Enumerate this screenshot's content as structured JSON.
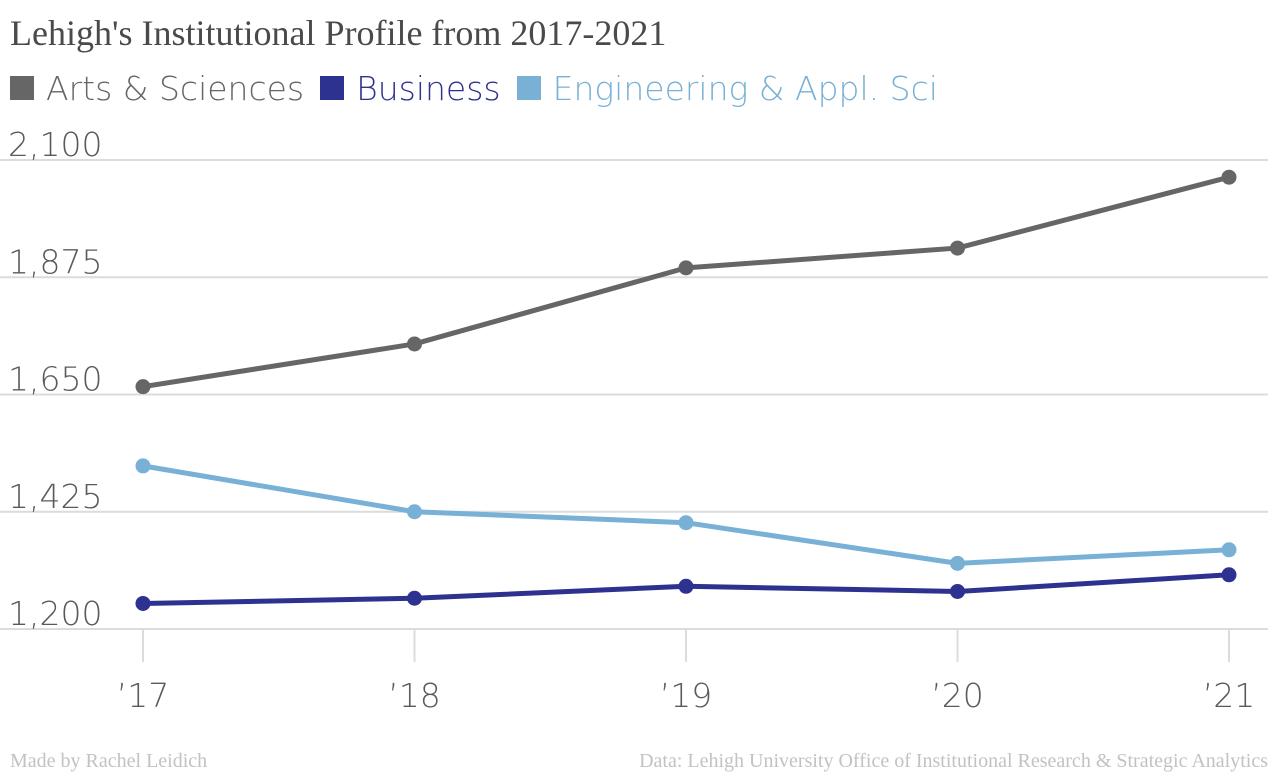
{
  "chart_data": {
    "type": "line",
    "title": "Lehigh's Institutional Profile from 2017-2021",
    "x": [
      "’17",
      "’18",
      "’19",
      "’20",
      "’21"
    ],
    "y_ticks": [
      "1,200",
      "1,425",
      "1,650",
      "1,875",
      "2,100"
    ],
    "ylim": [
      1200,
      2100
    ],
    "grid": true,
    "legend_position": "top-left",
    "series": [
      {
        "name": "Arts & Sciences",
        "color": "#666666",
        "values": [
          1665,
          1747,
          1893,
          1931,
          2067
        ]
      },
      {
        "name": "Business",
        "color": "#2d3190",
        "values": [
          1249,
          1259,
          1282,
          1272,
          1304
        ]
      },
      {
        "name": "Engineering & Appl. Sci",
        "color": "#78b0d6",
        "values": [
          1513,
          1425,
          1404,
          1326,
          1352
        ]
      }
    ]
  },
  "footer": {
    "credit": "Made by Rachel Leidich",
    "source": "Data: Lehigh University Office of Institutional Research & Strategic Analytics"
  }
}
